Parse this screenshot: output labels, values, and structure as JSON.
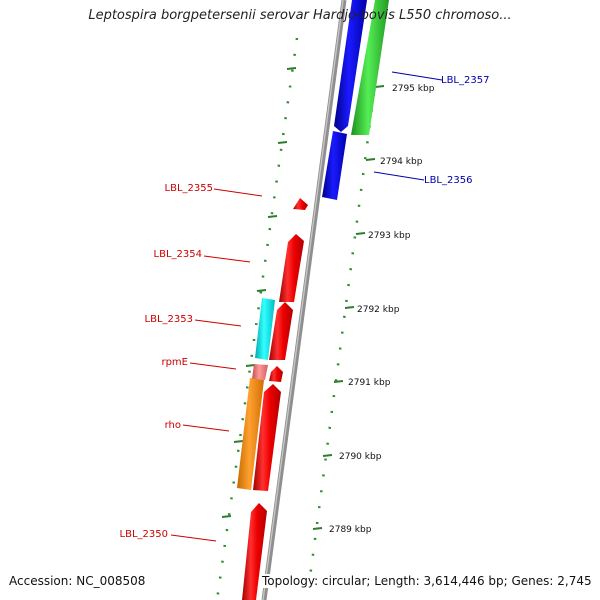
{
  "title": "Leptospira borgpetersenii serovar Hardjo-bovis L550 chromoso...",
  "accession": "Accession: NC_008508",
  "summary": "Topology: circular; Length: 3,614,446 bp; Genes: 2,745",
  "colors": {
    "reverse_strand_label": "#cc0000",
    "forward_strand_label": "#0000aa",
    "ruler_tick": "#2e7d2e",
    "backbone": "#9a9a9a"
  },
  "scale": {
    "unit": "kbp",
    "ticks": [
      {
        "label": "2795 kbp",
        "kbp": 2795
      },
      {
        "label": "2794 kbp",
        "kbp": 2794
      },
      {
        "label": "2793 kbp",
        "kbp": 2793
      },
      {
        "label": "2792 kbp",
        "kbp": 2792
      },
      {
        "label": "2791 kbp",
        "kbp": 2791
      },
      {
        "label": "2790 kbp",
        "kbp": 2790
      },
      {
        "label": "2789 kbp",
        "kbp": 2789
      }
    ]
  },
  "features": [
    {
      "name": "LBL_2357",
      "strand": "+",
      "color": "#33cc33"
    },
    {
      "name": "LBL_2356",
      "strand": "+",
      "color": "#0000ee"
    },
    {
      "name": "LBL_2355",
      "strand": "-",
      "color": "#ee0000"
    },
    {
      "name": "LBL_2354",
      "strand": "-",
      "color": "#ee0000"
    },
    {
      "name": "LBL_2353",
      "strand": "-",
      "color": "#00e5ee"
    },
    {
      "name": "rpmE",
      "strand": "-",
      "color": "#ee7777"
    },
    {
      "name": "rho",
      "strand": "-",
      "color": "#ff8c00"
    },
    {
      "name": "LBL_2350",
      "strand": "-",
      "color": "#ee0000"
    }
  ]
}
